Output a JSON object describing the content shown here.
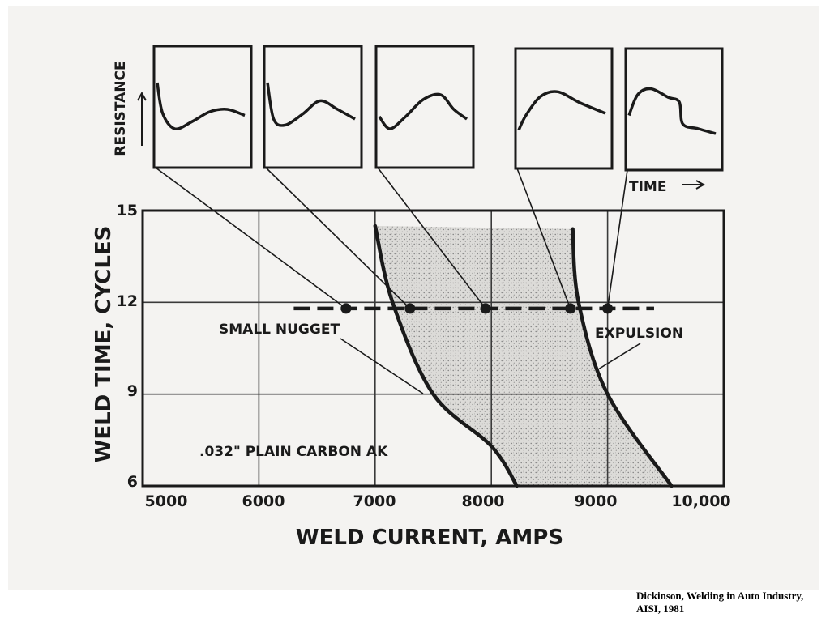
{
  "chart_data": {
    "type": "line",
    "title": "",
    "xlabel": "WELD CURRENT, AMPS",
    "ylabel": "WELD TIME, CYCLES",
    "xlim": [
      5000,
      10000
    ],
    "ylim": [
      6,
      15
    ],
    "x_ticks": [
      5000,
      6000,
      7000,
      8000,
      9000,
      10000
    ],
    "x_tick_labels": [
      "5000",
      "6000",
      "7000",
      "8000",
      "9000",
      "10,000"
    ],
    "y_ticks": [
      6,
      9,
      12,
      15
    ],
    "y_tick_labels": [
      "6",
      "9",
      "12",
      "15"
    ],
    "grid": true,
    "series": [
      {
        "name": "SMALL NUGGET",
        "points": [
          [
            7000,
            14.5
          ],
          [
            7150,
            12.0
          ],
          [
            7500,
            9.0
          ],
          [
            8000,
            7.3
          ],
          [
            8220,
            6.0
          ]
        ]
      },
      {
        "name": "EXPULSION",
        "points": [
          [
            8700,
            14.4
          ],
          [
            8750,
            12.0
          ],
          [
            9000,
            9.0
          ],
          [
            9550,
            6.0
          ]
        ]
      }
    ],
    "acceptable_region": "between SMALL NUGGET and EXPULSION curves (stippled)",
    "weld_time_line": {
      "y": 11.8,
      "x_range": [
        6300,
        9400
      ]
    },
    "markers": [
      {
        "x": 6750,
        "y": 11.8
      },
      {
        "x": 7300,
        "y": 11.8
      },
      {
        "x": 7950,
        "y": 11.8
      },
      {
        "x": 8680,
        "y": 11.8
      },
      {
        "x": 9000,
        "y": 11.8
      }
    ],
    "annotations": [
      ".032\" PLAIN CARBON AK",
      "SMALL NUGGET",
      "EXPULSION"
    ],
    "insets": {
      "ylabel": "RESISTANCE",
      "xlabel": "TIME",
      "curves": [
        [
          [
            0,
            0.3
          ],
          [
            0.06,
            0.55
          ],
          [
            0.2,
            0.68
          ],
          [
            0.4,
            0.62
          ],
          [
            0.6,
            0.54
          ],
          [
            0.8,
            0.52
          ],
          [
            1,
            0.57
          ]
        ],
        [
          [
            0,
            0.3
          ],
          [
            0.07,
            0.6
          ],
          [
            0.2,
            0.65
          ],
          [
            0.4,
            0.56
          ],
          [
            0.6,
            0.45
          ],
          [
            0.8,
            0.52
          ],
          [
            1,
            0.6
          ]
        ],
        [
          [
            0,
            0.58
          ],
          [
            0.12,
            0.68
          ],
          [
            0.3,
            0.58
          ],
          [
            0.5,
            0.44
          ],
          [
            0.7,
            0.4
          ],
          [
            0.85,
            0.52
          ],
          [
            1,
            0.6
          ]
        ],
        [
          [
            0,
            0.68
          ],
          [
            0.08,
            0.56
          ],
          [
            0.25,
            0.4
          ],
          [
            0.45,
            0.36
          ],
          [
            0.7,
            0.45
          ],
          [
            1,
            0.54
          ]
        ],
        [
          [
            0,
            0.55
          ],
          [
            0.1,
            0.38
          ],
          [
            0.25,
            0.33
          ],
          [
            0.45,
            0.4
          ],
          [
            0.58,
            0.44
          ],
          [
            0.62,
            0.62
          ],
          [
            0.8,
            0.66
          ],
          [
            1,
            0.7
          ]
        ]
      ]
    }
  },
  "caption": {
    "line1": "Dickinson, Welding in Auto Industry,",
    "line2": "AISI, 1981"
  }
}
